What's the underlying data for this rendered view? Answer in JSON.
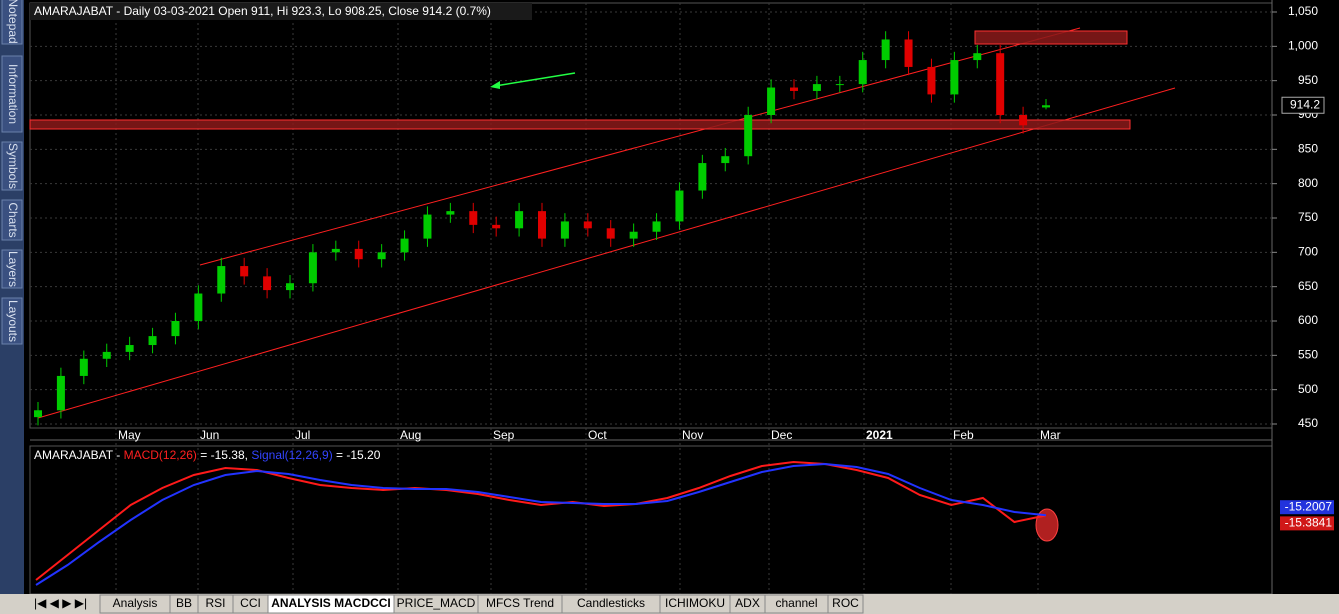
{
  "sidebar": [
    "Notepad",
    "Information",
    "Symbols",
    "Charts",
    "Layers",
    "Layouts"
  ],
  "chart_data": {
    "type": "candlestick",
    "title": "AMARAJABAT - Daily 03-03-2021 Open 911, Hi 923.3, Lo 908.25, Close 914.2 (0.7%)",
    "up_color": "#00cc00",
    "down_color": "#e00000",
    "open": [
      460,
      470,
      520,
      545,
      555,
      565,
      578,
      600,
      640,
      680,
      665,
      645,
      655,
      700,
      705,
      690,
      700,
      720,
      755,
      760,
      740,
      735,
      760,
      720,
      745,
      735,
      720,
      730,
      745,
      790,
      830,
      840,
      900,
      940,
      935,
      945,
      945,
      980,
      1010,
      970,
      930,
      980,
      990,
      900,
      911
    ],
    "high": [
      482,
      532,
      557,
      567,
      577,
      590,
      612,
      652,
      692,
      692,
      677,
      667,
      712,
      717,
      717,
      712,
      732,
      767,
      772,
      772,
      752,
      772,
      772,
      757,
      757,
      747,
      742,
      757,
      802,
      842,
      852,
      912,
      952,
      952,
      957,
      957,
      992,
      1022,
      1022,
      982,
      992,
      1002,
      1002,
      912,
      923.3
    ],
    "low": [
      448,
      458,
      508,
      533,
      543,
      553,
      566,
      588,
      628,
      653,
      633,
      633,
      643,
      688,
      678,
      678,
      688,
      708,
      743,
      728,
      723,
      723,
      708,
      708,
      723,
      708,
      708,
      718,
      733,
      778,
      818,
      828,
      888,
      923,
      923,
      933,
      933,
      968,
      958,
      918,
      918,
      968,
      888,
      873,
      908.25
    ],
    "close": [
      470,
      520,
      545,
      555,
      565,
      578,
      600,
      640,
      680,
      665,
      645,
      655,
      700,
      705,
      690,
      700,
      720,
      755,
      760,
      740,
      735,
      760,
      720,
      745,
      735,
      720,
      730,
      745,
      790,
      830,
      840,
      900,
      940,
      935,
      945,
      945,
      980,
      1010,
      970,
      930,
      980,
      990,
      900,
      885,
      914.2
    ],
    "xlabels": [
      "May",
      "Jun",
      "Jul",
      "Aug",
      "Sep",
      "Oct",
      "Nov",
      "Dec",
      "2021",
      "Feb",
      "Mar"
    ],
    "ylim": [
      450,
      1050
    ],
    "yticks": [
      450,
      500,
      550,
      600,
      650,
      700,
      750,
      800,
      850,
      900,
      950,
      {
        "value": 1000,
        "label": "1,000"
      },
      {
        "value": 1050,
        "label": "1,050"
      }
    ],
    "last_price": 914.2
  },
  "macd_chart": {
    "type": "line",
    "title_parts": [
      "AMARAJABAT - ",
      "MACD(12,26)",
      " = -15.38, ",
      "Signal(12,26,9)",
      " = -15.20"
    ],
    "ylim": [
      -92,
      52
    ],
    "series": [
      {
        "name": "MACD(12,26)",
        "color": "#ff1a1a",
        "values": [
          -80,
          -55,
          -30,
          -5,
          12,
          25,
          32,
          30,
          22,
          15,
          12,
          10,
          12,
          10,
          6,
          0,
          -5,
          -2,
          -6,
          -4,
          2,
          12,
          24,
          34,
          38,
          36,
          30,
          22,
          5,
          -5,
          2,
          -22,
          -15.38
        ]
      },
      {
        "name": "Signal(12,26,9)",
        "color": "#2233ff",
        "values": [
          -85,
          -65,
          -42,
          -20,
          0,
          15,
          25,
          29,
          26,
          20,
          15,
          12,
          11,
          11,
          8,
          3,
          -2,
          -3,
          -4,
          -4,
          -1,
          8,
          18,
          28,
          34,
          36,
          33,
          26,
          12,
          0,
          -5,
          -12,
          -15.2
        ]
      }
    ],
    "signal_label": "-15.2007",
    "macd_label": "-15.3841"
  },
  "tabs": [
    "Analysis",
    "BB",
    "RSI",
    "CCI",
    "ANALYSIS MACDCCI",
    "PRICE_MACD",
    "MFCS Trend",
    "Candlesticks",
    "ICHIMOKU",
    "ADX",
    "channel",
    "ROC"
  ],
  "active_tab": 4
}
